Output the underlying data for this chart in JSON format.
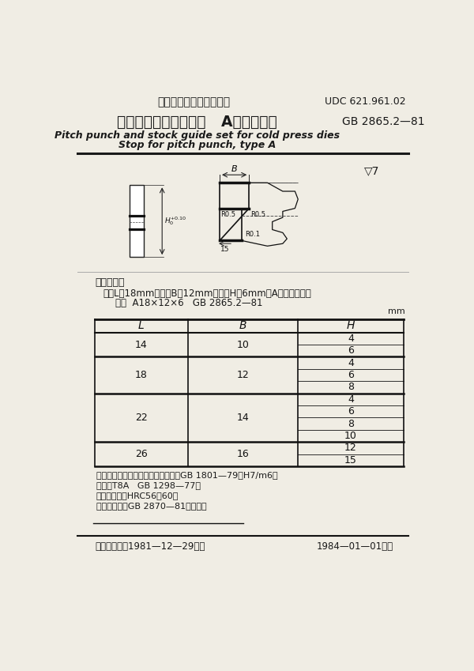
{
  "page_bg": "#f0ede4",
  "title_cn": "冷冲模侧刃和导料装置   A型侧刃挡块",
  "title_en_line1": "Pitch punch and stock guide set for cold press dies",
  "title_en_line2": "Stop for pitch punch, type A",
  "header_cn": "中华人民共和国国家标准",
  "udc": "UDC 621.961.02",
  "gb_number": "GB 2865.2—81",
  "surface_finish": "▽7",
  "label_example_title": "标记示例：",
  "label_example_line1": "长度L＝18mm、宽度B＝12mm、厚度H＝6mm的A型侧刃挡块；",
  "label_example_line2": "挡块  A18×12×6   GB 2865.2—81",
  "table_header": [
    "L",
    "B",
    "H"
  ],
  "table_data": [
    [
      14,
      10,
      [
        4,
        6
      ]
    ],
    [
      18,
      12,
      [
        4,
        6,
        8
      ]
    ],
    [
      22,
      14,
      [
        4,
        6,
        8,
        10
      ]
    ],
    [
      26,
      16,
      [
        12,
        15
      ]
    ]
  ],
  "unit_label": "mm",
  "note_line1": "注：外形尺寸与导料板配合的公差按GB 1801—79的H7/m6。",
  "note_line2": "材料：T8A   GB 1298—77。",
  "note_line3": "热处理：硬度HRC56～60。",
  "note_line4": "技术条件：按GB 2870—81的规定。",
  "footer_left": "国家标准总局1981—12—29发布",
  "footer_right": "1984—01—01实施"
}
